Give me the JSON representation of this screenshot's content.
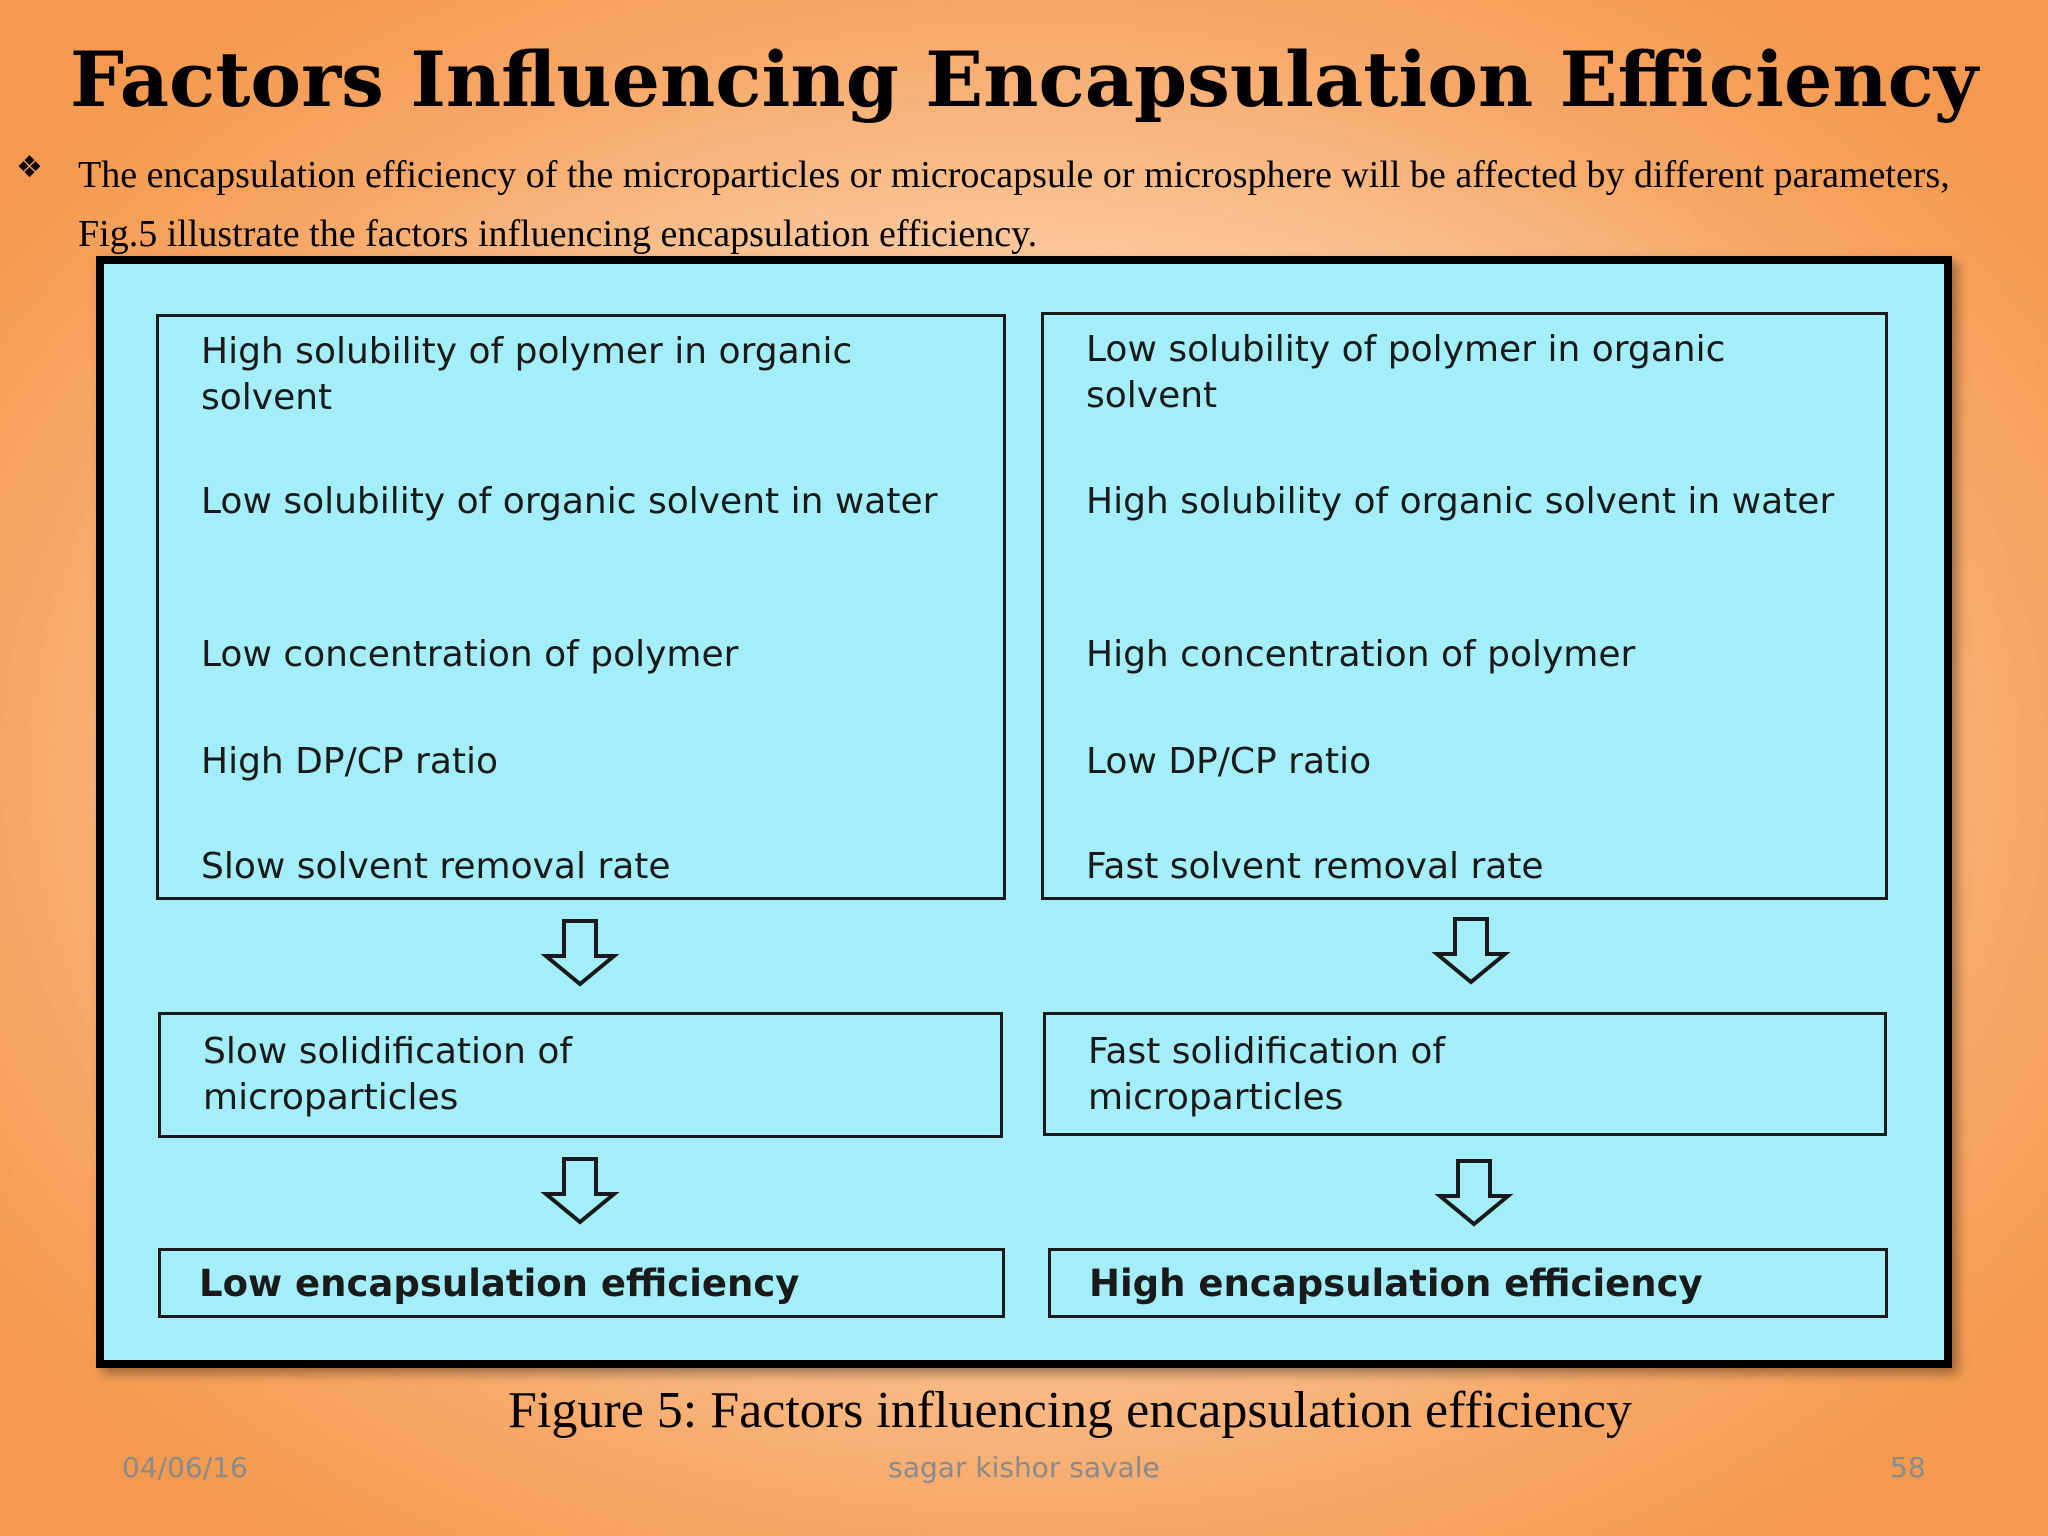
{
  "slide": {
    "title": "Factors Influencing Encapsulation Efficiency",
    "bullet_icon": "❖",
    "bullet_text": "The encapsulation efficiency of the microparticles or microcapsule or microsphere will be affected by different parameters, Fig.5 illustrate the factors influencing encapsulation efficiency."
  },
  "figure": {
    "left": {
      "factors": [
        "High solubility of polymer in organic solvent",
        "Low solubility of  organic solvent in water",
        "Low concentration of polymer",
        "High DP/CP ratio",
        "Slow solvent removal rate"
      ],
      "solidification": "Slow solidification of microparticles",
      "result": "Low encapsulation efficiency"
    },
    "right": {
      "factors": [
        "Low solubility of polymer in organic solvent",
        "High solubility of  organic solvent in water",
        "High concentration of polymer",
        "Low DP/CP ratio",
        "Fast solvent removal rate"
      ],
      "solidification": "Fast solidification of microparticles",
      "result": "High encapsulation efficiency"
    },
    "arrow_icon": "down-arrow-icon",
    "background_color": "#a4eefa"
  },
  "caption": "Figure 5: Factors influencing encapsulation efficiency",
  "footer": {
    "date": "04/06/16",
    "author": "sagar kishor savale",
    "page_number": "58"
  }
}
